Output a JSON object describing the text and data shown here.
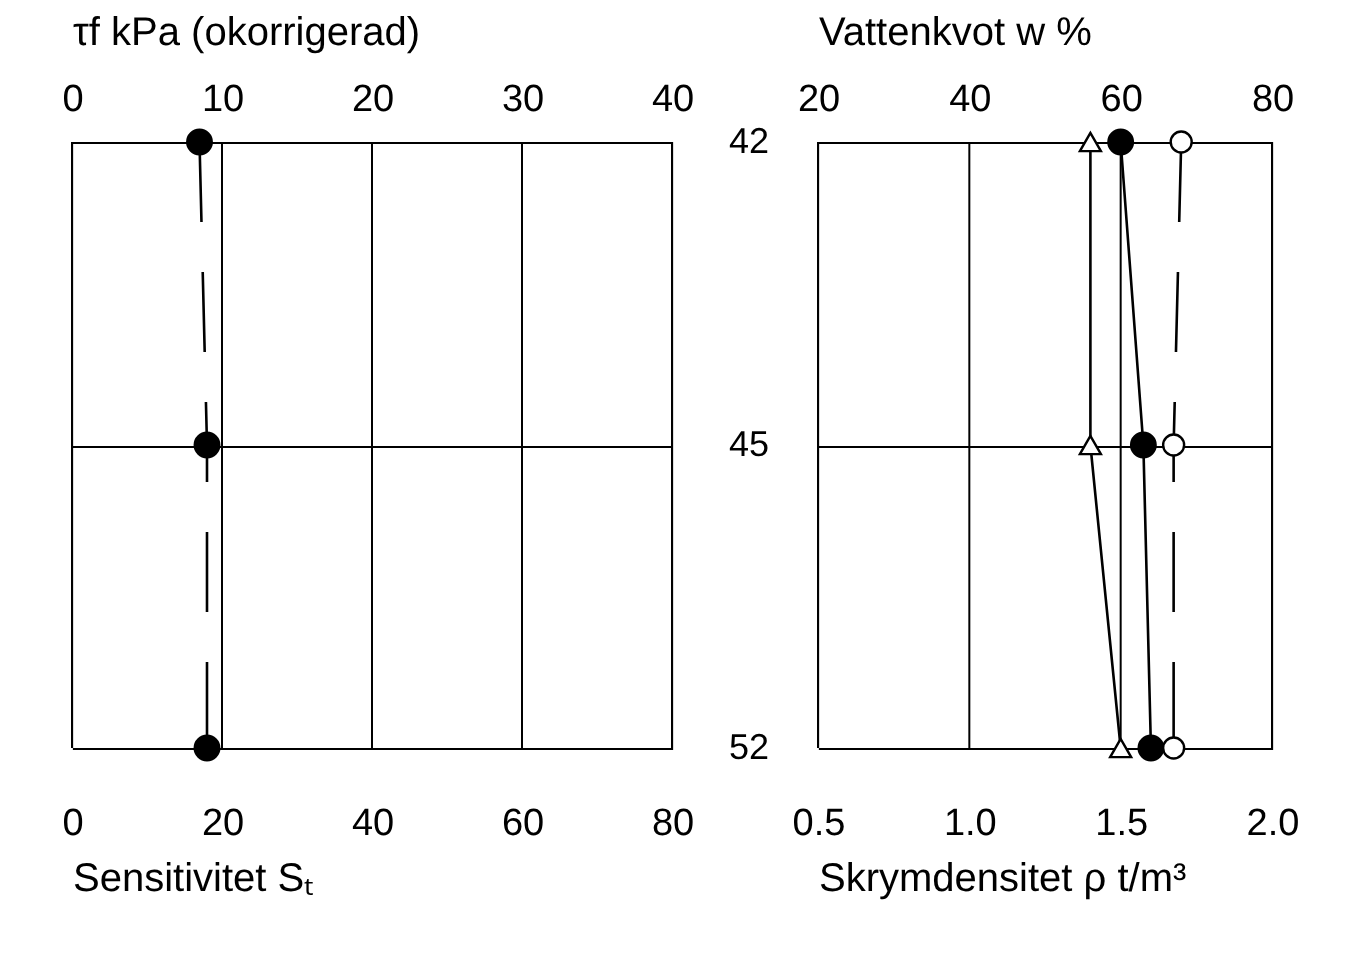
{
  "chart_data": [
    {
      "type": "line",
      "orientation": "horizontal",
      "categories": [
        "42",
        "45",
        "52"
      ],
      "xlabel": "Sensitivitet Sₜ",
      "xlim": [
        0,
        80
      ],
      "xticks": [
        0,
        20,
        40,
        60,
        80
      ],
      "x2label": "τf kPa (okorrigerad)",
      "x2lim": [
        0,
        40
      ],
      "x2ticks": [
        0,
        10,
        20,
        30,
        40
      ],
      "grid": true,
      "series": [
        {
          "color": "#000000",
          "values": [
            8.5,
            9.0,
            9.0
          ],
          "axis": "x2",
          "marker": "circle",
          "line_style": "dashed"
        }
      ]
    },
    {
      "type": "line",
      "orientation": "horizontal",
      "categories": [
        "42",
        "45",
        "52"
      ],
      "xlabel": "Skrymdensitet ρ t/m³",
      "xlim": [
        0.5,
        2.0
      ],
      "xticks": [
        0.5,
        {
          "value": 1,
          "label": "1.0"
        },
        1.5,
        {
          "value": 2,
          "label": "2.0"
        }
      ],
      "x2label": "Vattenkvot w %",
      "x2lim": [
        20,
        80
      ],
      "x2ticks": [
        20,
        40,
        60,
        80
      ],
      "grid": true,
      "tick_labels": "x",
      "series": [
        {
          "color": "#000000",
          "values": [
            60,
            63,
            64
          ],
          "axis": "x2",
          "marker": "circle",
          "line_style": "solid"
        },
        {
          "color": "#000000",
          "values": [
            68,
            67,
            67
          ],
          "axis": "x2",
          "marker": "circle",
          "line_style": "dashed"
        },
        {
          "color": "#000000",
          "values": [
            1.4,
            1.4,
            1.5
          ],
          "marker": "triangle",
          "line_style": "solid"
        }
      ]
    }
  ]
}
